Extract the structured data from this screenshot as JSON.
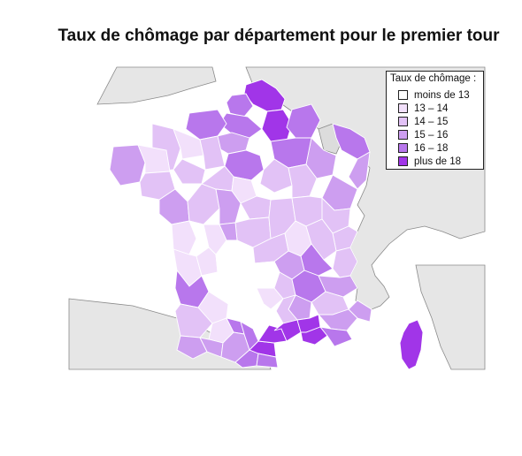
{
  "title": "Taux de chômage par département pour le premier tour",
  "legend": {
    "title": "Taux de chômage :",
    "items": [
      {
        "label": "moins de 13",
        "color": "#ffffff"
      },
      {
        "label": "13 – 14",
        "color": "#f2e0fb"
      },
      {
        "label": "14 – 15",
        "color": "#e2c2f6"
      },
      {
        "label": "15 – 16",
        "color": "#cd9ef0"
      },
      {
        "label": "16 – 18",
        "color": "#b877ec"
      },
      {
        "label": "plus de 18",
        "color": "#a135e8"
      }
    ]
  },
  "colors": {
    "background_land": "#e6e6e6",
    "border": "#8a8a8a",
    "sea": "#ffffff"
  }
}
